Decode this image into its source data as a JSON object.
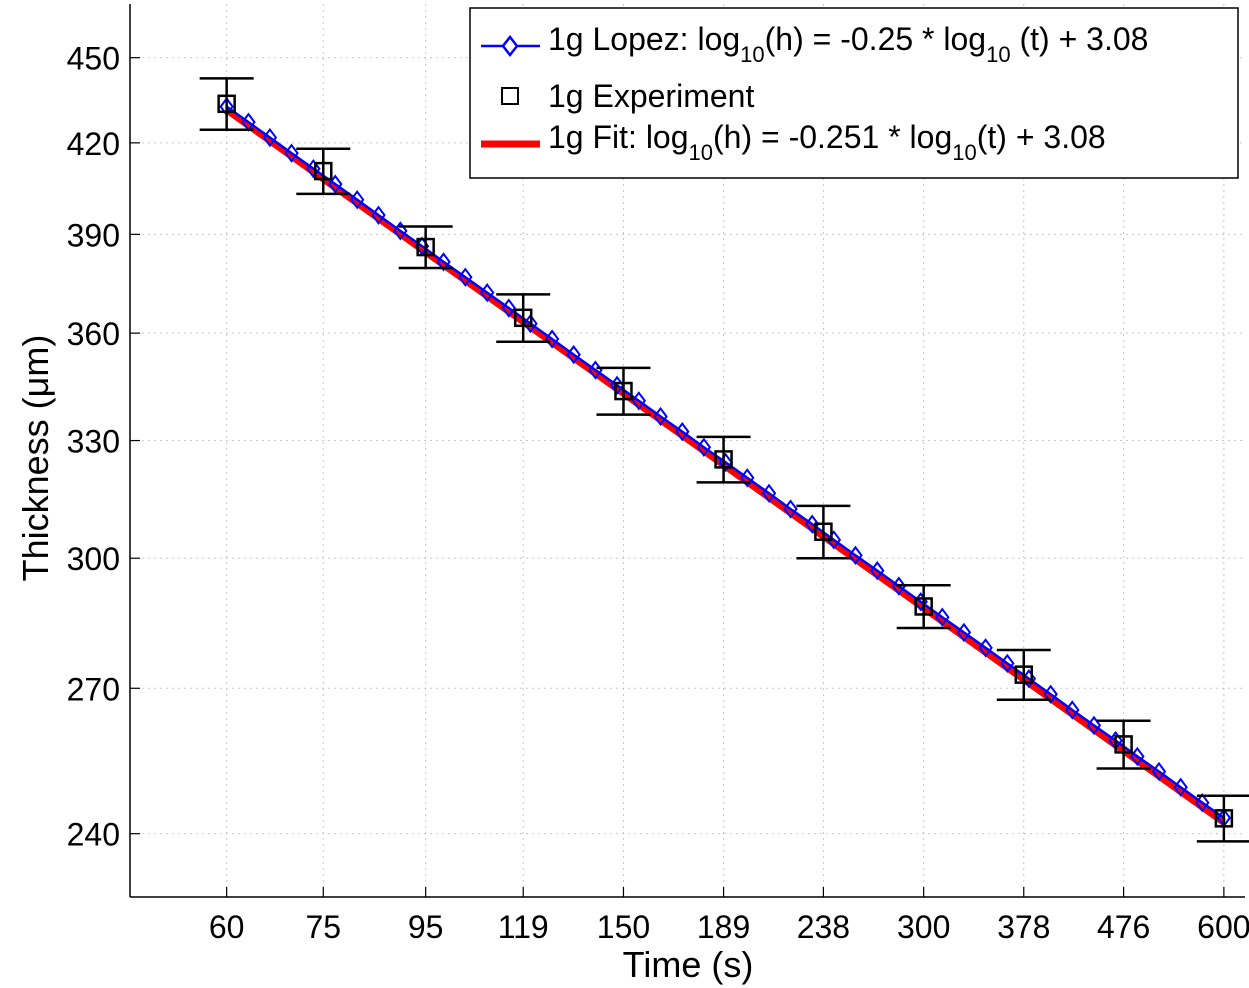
{
  "chart_data": {
    "type": "line",
    "x_scale": "log",
    "y_scale": "log",
    "xlabel": "Time (s)",
    "ylabel": "Thickness (μm)",
    "x_ticks": [
      60,
      75,
      95,
      119,
      150,
      189,
      238,
      300,
      378,
      476,
      600
    ],
    "x_tick_labels": [
      "60",
      "75",
      "95",
      "119",
      "150",
      "189",
      "238",
      "300",
      "378",
      "476",
      "600"
    ],
    "y_ticks": [
      240,
      270,
      300,
      330,
      360,
      390,
      420,
      450
    ],
    "y_tick_labels": [
      "240",
      "270",
      "300",
      "330",
      "360",
      "390",
      "420",
      "450"
    ],
    "xlim": [
      48,
      630
    ],
    "ylim": [
      228,
      470
    ],
    "grid": true,
    "legend_position": "top-right",
    "legend": [
      {
        "pre": "1g Lopez: log",
        "s1": "10",
        "mid": "(h) = -0.25 * log",
        "s2": "10",
        "post": " (t) + 3.08"
      },
      {
        "pre": "1g Experiment",
        "s1": "",
        "mid": "",
        "s2": "",
        "post": ""
      },
      {
        "pre": "1g Fit: log",
        "s1": "10",
        "mid": "(h) = -0.251 * log",
        "s2": "10",
        "post": "(t) + 3.08"
      }
    ],
    "series": [
      {
        "name": "1g Lopez: log10(h) = -0.25 * log10 (t) + 3.08",
        "style": "line-diamond",
        "color": "#0000ff",
        "x": [
          60,
          63.1,
          66.3,
          69.7,
          73.3,
          77.1,
          81.1,
          85.2,
          89.6,
          94.2,
          99.0,
          104.1,
          109.5,
          115.1,
          121.0,
          127.2,
          133.7,
          140.6,
          147.8,
          155.4,
          163.4,
          171.8,
          180.6,
          189.9,
          199.6,
          209.9,
          220.6,
          231.9,
          243.8,
          256.3,
          269.5,
          283.3,
          297.9,
          313.2,
          329.2,
          346.1,
          363.9,
          382.5,
          402.2,
          422.8,
          444.5,
          467.3,
          491.3,
          516.5,
          543.0,
          570.8,
          600
        ],
        "y": [
          432.5,
          427.1,
          421.8,
          416.5,
          411.3,
          406.2,
          401.1,
          396.1,
          391.1,
          386.3,
          381.4,
          376.7,
          372.0,
          367.4,
          362.8,
          358.3,
          353.8,
          349.4,
          345.1,
          340.8,
          336.5,
          332.4,
          328.2,
          324.2,
          320.2,
          316.2,
          312.2,
          308.4,
          304.5,
          300.7,
          297.0,
          293.3,
          289.6,
          286.0,
          282.5,
          279.0,
          275.5,
          272.1,
          268.7,
          265.3,
          262.0,
          258.8,
          255.5,
          252.4,
          249.2,
          246.1,
          243.1
        ]
      },
      {
        "name": "1g Experiment",
        "style": "square-errorbar",
        "color": "#000000",
        "x": [
          60,
          75,
          95,
          119,
          150,
          189,
          238,
          300,
          378,
          476,
          600
        ],
        "y": [
          433.5,
          410.5,
          386,
          364.5,
          343.5,
          325,
          306.5,
          288.5,
          273,
          258,
          243
        ],
        "err": [
          9,
          7.5,
          6.5,
          7,
          6.5,
          6,
          6.5,
          5,
          5.5,
          5,
          4.5
        ]
      },
      {
        "name": "1g Fit: log10(h) = -0.251 * log10(t) + 3.08",
        "style": "line",
        "color": "#ff0000",
        "x": [
          60,
          600
        ],
        "y": [
          431.4,
          242.2
        ]
      }
    ]
  }
}
